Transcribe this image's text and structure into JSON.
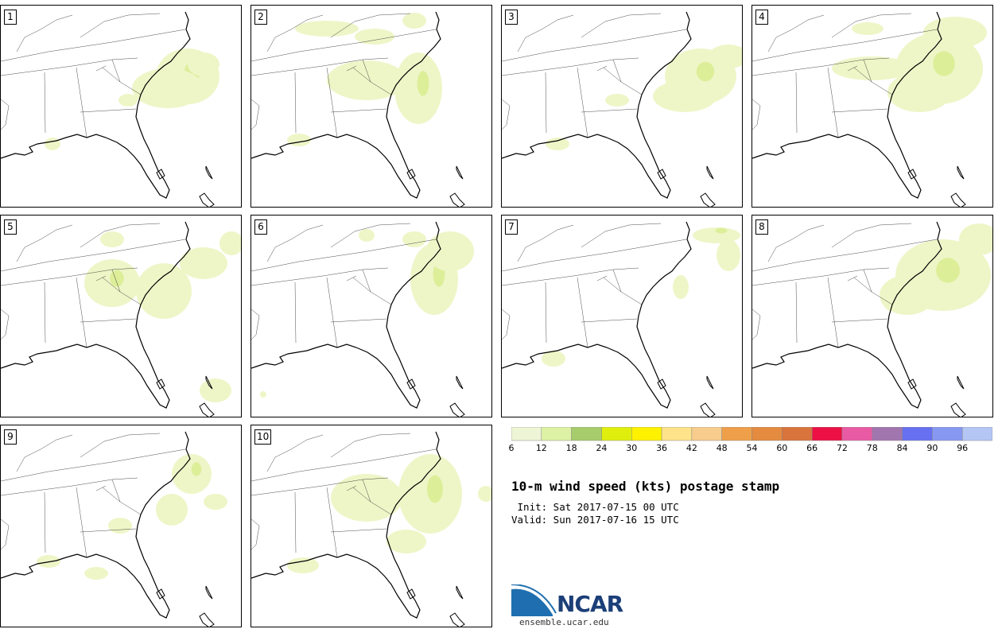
{
  "panels": [
    {
      "label": "1",
      "blobs": [
        [
          235,
          95,
          40,
          35
        ],
        [
          210,
          110,
          45,
          25
        ],
        [
          255,
          80,
          20,
          15
        ],
        [
          160,
          125,
          12,
          8
        ],
        [
          65,
          180,
          10,
          8
        ]
      ]
    },
    {
      "label": "2",
      "blobs": [
        [
          525,
          110,
          30,
          45
        ],
        [
          460,
          100,
          50,
          25
        ],
        [
          410,
          35,
          40,
          10
        ],
        [
          470,
          45,
          25,
          10
        ],
        [
          375,
          175,
          15,
          8
        ],
        [
          520,
          25,
          15,
          10
        ]
      ]
    },
    {
      "label": "3",
      "blobs": [
        [
          880,
          95,
          45,
          35
        ],
        [
          860,
          120,
          40,
          20
        ],
        [
          915,
          70,
          25,
          15
        ],
        [
          775,
          125,
          15,
          8
        ],
        [
          700,
          180,
          15,
          8
        ]
      ]
    },
    {
      "label": "4",
      "blobs": [
        [
          1180,
          85,
          55,
          45
        ],
        [
          1155,
          115,
          40,
          25
        ],
        [
          1095,
          85,
          50,
          15
        ],
        [
          1200,
          40,
          40,
          20
        ],
        [
          1090,
          35,
          20,
          8
        ]
      ]
    },
    {
      "label": "5",
      "blobs": [
        [
          140,
          355,
          35,
          30
        ],
        [
          205,
          365,
          35,
          35
        ],
        [
          255,
          330,
          30,
          20
        ],
        [
          290,
          305,
          15,
          15
        ],
        [
          270,
          490,
          20,
          15
        ],
        [
          140,
          300,
          15,
          10
        ]
      ]
    },
    {
      "label": "6",
      "blobs": [
        [
          545,
          350,
          30,
          45
        ],
        [
          565,
          315,
          30,
          25
        ],
        [
          520,
          300,
          15,
          10
        ],
        [
          460,
          295,
          10,
          8
        ],
        [
          330,
          495,
          4,
          4
        ]
      ]
    },
    {
      "label": "7",
      "blobs": [
        [
          900,
          295,
          30,
          10
        ],
        [
          915,
          320,
          15,
          20
        ],
        [
          855,
          360,
          10,
          15
        ],
        [
          695,
          450,
          15,
          10
        ]
      ]
    },
    {
      "label": "8",
      "blobs": [
        [
          1185,
          345,
          60,
          45
        ],
        [
          1140,
          370,
          35,
          25
        ],
        [
          1230,
          300,
          25,
          20
        ],
        [
          1120,
          380,
          10,
          10
        ]
      ]
    },
    {
      "label": "9",
      "blobs": [
        [
          240,
          595,
          25,
          25
        ],
        [
          215,
          640,
          20,
          20
        ],
        [
          270,
          630,
          15,
          10
        ],
        [
          150,
          660,
          15,
          10
        ],
        [
          120,
          720,
          15,
          8
        ],
        [
          60,
          705,
          15,
          8
        ]
      ]
    },
    {
      "label": "10",
      "blobs": [
        [
          540,
          620,
          40,
          50
        ],
        [
          460,
          625,
          45,
          30
        ],
        [
          510,
          680,
          25,
          15
        ],
        [
          610,
          620,
          10,
          10
        ],
        [
          380,
          710,
          20,
          10
        ]
      ]
    }
  ],
  "colorbar": {
    "colors": [
      "#eef5d6",
      "#ddf2a4",
      "#a7cc6b",
      "#e0ee0e",
      "#fff200",
      "#fee38b",
      "#f7cc8c",
      "#ef9f4a",
      "#e48b3f",
      "#d8743c",
      "#ec1044",
      "#e85aa4",
      "#a176ae",
      "#6670f0",
      "#8698f2",
      "#b4c6f4"
    ],
    "ticks": [
      "6",
      "12",
      "18",
      "24",
      "30",
      "36",
      "42",
      "48",
      "54",
      "60",
      "66",
      "72",
      "78",
      "84",
      "90",
      "96"
    ]
  },
  "title": "10-m wind speed (kts) postage stamp",
  "init": " Init: Sat 2017-07-15 00 UTC",
  "valid": "Valid: Sun 2017-07-16 15 UTC",
  "logo": {
    "text": "NCAR",
    "url": "ensemble.ucar.edu"
  },
  "colors": {
    "blob_fill": "#eef6c8",
    "blob_strong": "#d2ea7a",
    "map_line": "#000000"
  }
}
